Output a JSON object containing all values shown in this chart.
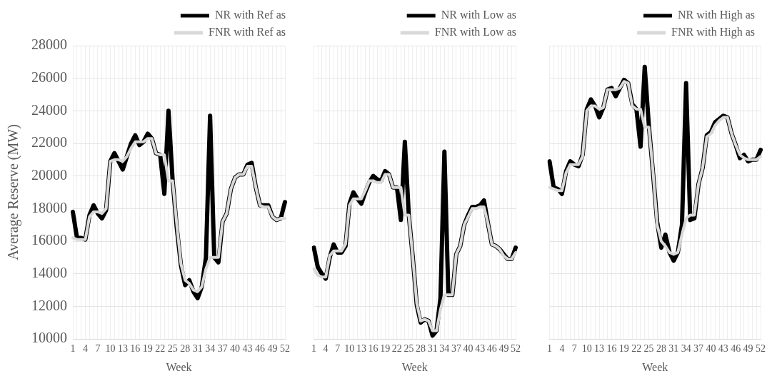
{
  "chart_data": [
    {
      "type": "line",
      "ylabel": "Average Reserve (MW)",
      "xlabel": "Week",
      "legend": "top right",
      "grid": true,
      "ylim": [
        10000,
        28000
      ],
      "yticks": [
        10000,
        12000,
        14000,
        16000,
        18000,
        20000,
        22000,
        24000,
        26000,
        28000
      ],
      "categories": [
        "1",
        null,
        null,
        "4",
        null,
        null,
        "7",
        null,
        null,
        "10",
        null,
        null,
        "13",
        null,
        null,
        "16",
        null,
        null,
        "19",
        null,
        null,
        "22",
        null,
        null,
        "25",
        null,
        null,
        "28",
        null,
        null,
        "31",
        null,
        null,
        "34",
        null,
        null,
        "37",
        null,
        null,
        "40",
        null,
        null,
        "43",
        null,
        null,
        "46",
        null,
        null,
        "49",
        null,
        null,
        "52"
      ],
      "series": [
        {
          "name": "NR with Ref as",
          "color": "#000000",
          "values": [
            17800,
            16200,
            16200,
            16100,
            17600,
            18200,
            17700,
            17400,
            17900,
            20900,
            21400,
            20900,
            20400,
            21200,
            22000,
            22500,
            21900,
            22100,
            22600,
            22300,
            21400,
            21300,
            18900,
            24000,
            19700,
            16800,
            14500,
            13300,
            13600,
            12900,
            12500,
            13200,
            15000,
            23700,
            15000,
            14700,
            17200,
            17700,
            19200,
            19900,
            20100,
            20100,
            20700,
            20800,
            19300,
            18200,
            18200,
            18200,
            17500,
            17300,
            17400,
            18400
          ]
        },
        {
          "name": "FNR with Ref as",
          "color": "#d9d9d9",
          "values": [
            16200,
            16100,
            16100,
            16100,
            17500,
            17800,
            17800,
            17700,
            18000,
            20900,
            21000,
            21000,
            20900,
            21200,
            21700,
            22100,
            22100,
            22100,
            22300,
            22300,
            21400,
            21300,
            21300,
            19700,
            19700,
            17000,
            14600,
            13600,
            13400,
            13000,
            12900,
            13200,
            14300,
            15000,
            15000,
            15000,
            17200,
            17700,
            19200,
            19900,
            20100,
            20100,
            20600,
            20600,
            19300,
            18200,
            18100,
            18100,
            17500,
            17300,
            17400,
            17400
          ]
        }
      ]
    },
    {
      "type": "line",
      "xlabel": "Week",
      "legend": "top right",
      "grid": true,
      "tick_labels": "x",
      "ylim": [
        10000,
        28000
      ],
      "yticks": [
        10000,
        12000,
        14000,
        16000,
        18000,
        20000,
        22000,
        24000,
        26000,
        28000
      ],
      "categories": [
        "1",
        null,
        null,
        "4",
        null,
        null,
        "7",
        null,
        null,
        "10",
        null,
        null,
        "13",
        null,
        null,
        "16",
        null,
        null,
        "19",
        null,
        null,
        "22",
        null,
        null,
        "25",
        null,
        null,
        "28",
        null,
        null,
        "31",
        null,
        null,
        "34",
        null,
        null,
        "37",
        null,
        null,
        "40",
        null,
        null,
        "43",
        null,
        null,
        "46",
        null,
        null,
        "49",
        null,
        null,
        "52"
      ],
      "series": [
        {
          "name": "NR with Low as",
          "color": "#000000",
          "values": [
            15600,
            14400,
            14000,
            13700,
            15000,
            15800,
            15300,
            15300,
            15700,
            18300,
            19000,
            18600,
            18300,
            19000,
            19600,
            20000,
            19800,
            19700,
            20300,
            20100,
            19300,
            19300,
            17300,
            22100,
            17600,
            15000,
            12100,
            11000,
            11200,
            11100,
            10200,
            10500,
            12500,
            21500,
            12700,
            12700,
            15200,
            15700,
            17000,
            17600,
            18100,
            18100,
            18200,
            18500,
            17100,
            15800,
            15700,
            15500,
            15200,
            14900,
            14900,
            15600
          ]
        },
        {
          "name": "FNR with Low as",
          "color": "#d9d9d9",
          "values": [
            14300,
            13900,
            13800,
            13800,
            15100,
            15400,
            15400,
            15400,
            15800,
            18200,
            18600,
            18600,
            18600,
            19100,
            19700,
            19700,
            19600,
            19600,
            20100,
            20100,
            19300,
            19300,
            19300,
            17600,
            17600,
            15000,
            12200,
            11100,
            11200,
            11100,
            10500,
            10500,
            11800,
            12700,
            12700,
            12700,
            15200,
            15700,
            17000,
            17500,
            18000,
            18000,
            18100,
            18100,
            17100,
            15800,
            15700,
            15500,
            15100,
            14900,
            14900,
            15300
          ]
        }
      ]
    },
    {
      "type": "line",
      "xlabel": "Week",
      "legend": "top right",
      "grid": true,
      "tick_labels": "x",
      "ylim": [
        10000,
        28000
      ],
      "yticks": [
        10000,
        12000,
        14000,
        16000,
        18000,
        20000,
        22000,
        24000,
        26000,
        28000
      ],
      "categories": [
        "1",
        null,
        null,
        "4",
        null,
        null,
        "7",
        null,
        null,
        "10",
        null,
        null,
        "13",
        null,
        null,
        "16",
        null,
        null,
        "19",
        null,
        null,
        "22",
        null,
        null,
        "25",
        null,
        null,
        "28",
        null,
        null,
        "31",
        null,
        null,
        "34",
        null,
        null,
        "37",
        null,
        null,
        "40",
        null,
        null,
        "43",
        null,
        null,
        "46",
        null,
        null,
        "49",
        null,
        null,
        "52"
      ],
      "series": [
        {
          "name": "NR with High as",
          "color": "#000000",
          "values": [
            20900,
            19300,
            19200,
            18900,
            20300,
            20900,
            20700,
            20600,
            21300,
            24100,
            24700,
            24300,
            23600,
            24200,
            25300,
            25400,
            24900,
            25400,
            25900,
            25700,
            24400,
            24100,
            21800,
            26700,
            23100,
            20200,
            17200,
            15600,
            16400,
            15300,
            14800,
            15300,
            17000,
            25700,
            17300,
            17400,
            19500,
            20500,
            22500,
            22700,
            23300,
            23500,
            23700,
            23600,
            22600,
            21900,
            21100,
            21300,
            20900,
            21000,
            21000,
            21600
          ]
        },
        {
          "name": "FNR with High as",
          "color": "#d9d9d9",
          "values": [
            19300,
            19200,
            19100,
            19100,
            20200,
            20700,
            20700,
            20700,
            21200,
            24000,
            24300,
            24300,
            24100,
            24200,
            25300,
            25300,
            25300,
            25400,
            25800,
            25700,
            24300,
            24100,
            24100,
            23000,
            23000,
            20300,
            17000,
            16000,
            15700,
            15300,
            15200,
            15300,
            16400,
            17400,
            17600,
            17600,
            19500,
            20500,
            22400,
            22600,
            23100,
            23400,
            23600,
            23600,
            22600,
            21900,
            21300,
            21100,
            21000,
            21000,
            21000,
            21200
          ]
        }
      ]
    }
  ]
}
